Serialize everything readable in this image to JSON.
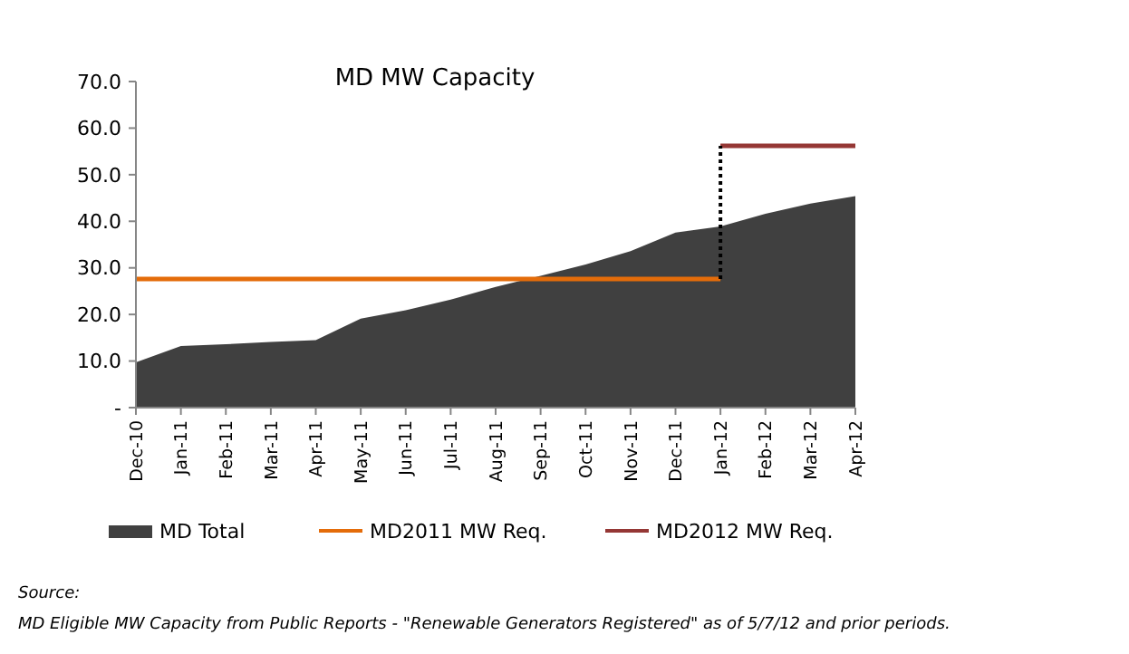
{
  "chart_data": {
    "type": "area",
    "title": "MD MW Capacity",
    "categories": [
      "Dec-10",
      "Jan-11",
      "Feb-11",
      "Mar-11",
      "Apr-11",
      "May-11",
      "Jun-11",
      "Jul-11",
      "Aug-11",
      "Sep-11",
      "Oct-11",
      "Nov-11",
      "Dec-11",
      "Jan-12",
      "Feb-12",
      "Mar-12",
      "Apr-12"
    ],
    "series": [
      {
        "name": "MD Total",
        "color": "#404040",
        "values": [
          9.7,
          13.2,
          13.6,
          14.1,
          14.5,
          19.1,
          20.9,
          23.2,
          25.9,
          28.3,
          30.7,
          33.6,
          37.6,
          38.9,
          41.6,
          43.8,
          45.4
        ]
      },
      {
        "name": "MD2011 MW Req.",
        "type": "line",
        "color": "#e46c0a",
        "values": [
          27.6,
          27.6,
          27.6,
          27.6,
          27.6,
          27.6,
          27.6,
          27.6,
          27.6,
          27.6,
          27.6,
          27.6,
          27.6,
          27.6,
          null,
          null,
          null
        ]
      },
      {
        "name": "MD2012 MW Req.",
        "type": "line",
        "color": "#953735",
        "values": [
          null,
          null,
          null,
          null,
          null,
          null,
          null,
          null,
          null,
          null,
          null,
          null,
          null,
          56.2,
          56.2,
          56.2,
          56.2
        ]
      },
      {
        "type": "line",
        "color": "#000000",
        "line_style": "dotted",
        "x": [
          "Jan-12",
          "Jan-12"
        ],
        "values": [
          27.6,
          56.2
        ]
      }
    ],
    "ylim": [
      0,
      70
    ],
    "yticks": [
      {
        "value": 0,
        "label": "-"
      },
      {
        "value": 10,
        "label": "10.0"
      },
      {
        "value": 20,
        "label": "20.0"
      },
      {
        "value": 30,
        "label": "30.0"
      },
      {
        "value": 40,
        "label": "40.0"
      },
      {
        "value": 50,
        "label": "50.0"
      },
      {
        "value": 60,
        "label": "60.0"
      },
      {
        "value": 70,
        "label": "70.0"
      }
    ],
    "legend": "bottom",
    "annotations": [
      "Source:",
      "MD Eligible MW Capacity from Public Reports - \"Renewable Generators Registered\" as of 5/7/12 and prior periods."
    ]
  }
}
